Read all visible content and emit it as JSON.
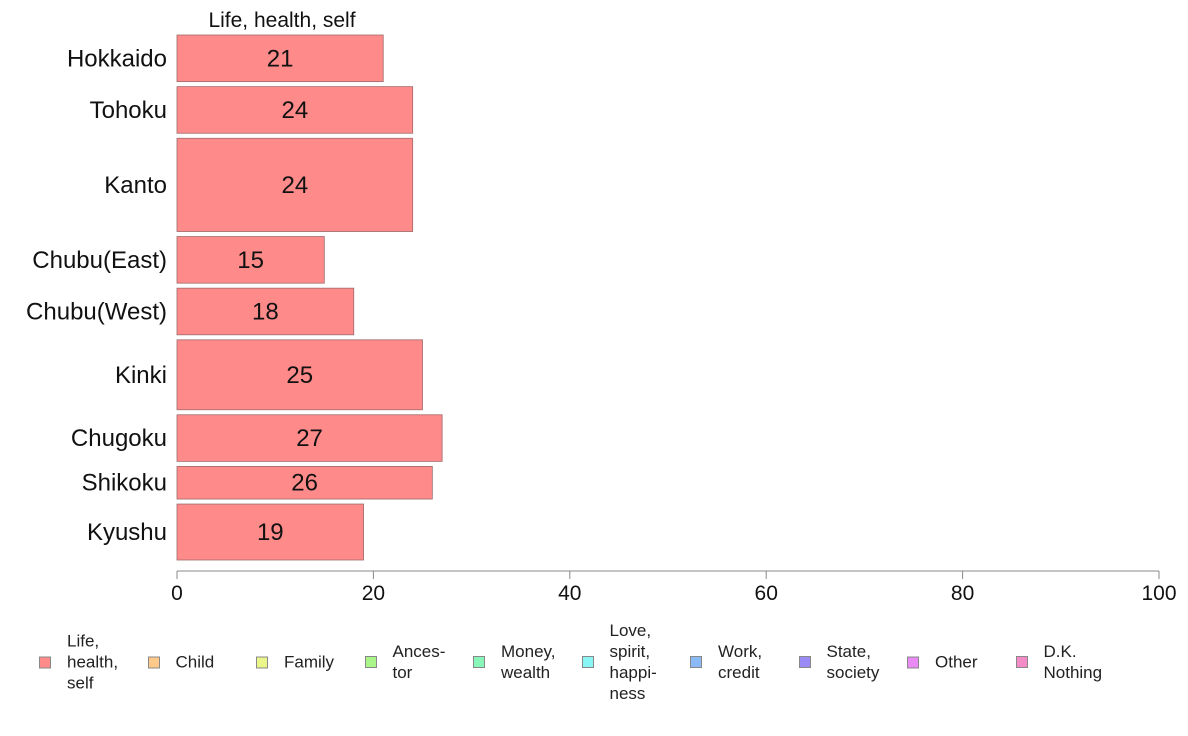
{
  "chart_data": {
    "type": "bar",
    "orientation": "horizontal",
    "panel_title": "Life, health, self",
    "categories": [
      "Hokkaido",
      "Tohoku",
      "Kanto",
      "Chubu(East)",
      "Chubu(West)",
      "Kinki",
      "Chugoku",
      "Shikoku",
      "Kyushu"
    ],
    "values": [
      21,
      24,
      24,
      15,
      18,
      25,
      27,
      26,
      19
    ],
    "category_weights": [
      1,
      1,
      2,
      1,
      1,
      1.5,
      1,
      0.7,
      1.2
    ],
    "xlim": [
      0,
      100
    ],
    "xticks": [
      0,
      20,
      40,
      60,
      80,
      100
    ],
    "bar_color": "#ff8a8a",
    "legend_position": "bottom",
    "legend": [
      {
        "label": "Life,\nhealth,\nself",
        "color": "#ff8a8a"
      },
      {
        "label": "Child",
        "color": "#ffc98a"
      },
      {
        "label": "Family",
        "color": "#eaf58a"
      },
      {
        "label": "Ances-\ntor",
        "color": "#a9f58a"
      },
      {
        "label": "Money,\nwealth",
        "color": "#8af5b9"
      },
      {
        "label": "Love,\nspirit,\nhappi-\nness",
        "color": "#8af5f5"
      },
      {
        "label": "Work,\ncredit",
        "color": "#8ab9f5"
      },
      {
        "label": "State,\nsociety",
        "color": "#9a8af5"
      },
      {
        "label": "Other",
        "color": "#e98af5"
      },
      {
        "label": "D.K.\nNothing",
        "color": "#f58ac9"
      }
    ]
  }
}
